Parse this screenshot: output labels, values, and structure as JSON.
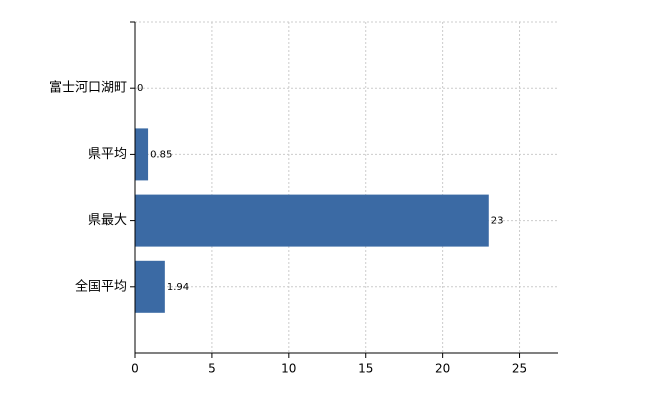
{
  "chart_data": {
    "type": "bar",
    "orientation": "horizontal",
    "categories": [
      "富士河口湖町",
      "県平均",
      "県最大",
      "全国平均"
    ],
    "values": [
      0,
      0.85,
      23,
      1.94
    ],
    "color": "#3b6aa4",
    "xlim": [
      0,
      27.5
    ],
    "xticks": [
      0,
      5,
      10,
      15,
      20,
      25
    ],
    "grid": true
  }
}
